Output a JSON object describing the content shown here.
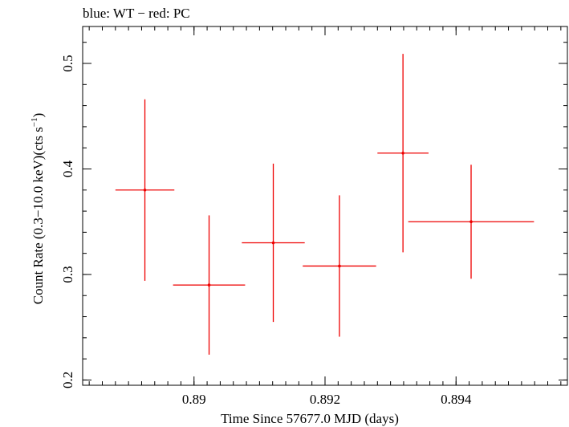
{
  "chart_data": {
    "type": "scatter",
    "title": "blue: WT − red: PC",
    "xlabel": "Time Since 57677.0 MJD (days)",
    "ylabel": "Count Rate (0.3−10.0 keV)(cts s",
    "ylabel_sup": "−1",
    "ylabel_close": ")",
    "xlim": [
      0.8883,
      0.8957
    ],
    "ylim": [
      0.195,
      0.535
    ],
    "x_ticks": [
      {
        "value": 0.89,
        "label": "0.89"
      },
      {
        "value": 0.892,
        "label": "0.892"
      },
      {
        "value": 0.894,
        "label": "0.894"
      }
    ],
    "x_minor_step": 0.0002,
    "y_ticks": [
      {
        "value": 0.2,
        "label": "0.2"
      },
      {
        "value": 0.3,
        "label": "0.3"
      },
      {
        "value": 0.4,
        "label": "0.4"
      },
      {
        "value": 0.5,
        "label": "0.5"
      }
    ],
    "y_minor_step": 0.02,
    "grid": false,
    "series": [
      {
        "color": "#ee0000",
        "points": [
          {
            "x": 0.88925,
            "y": 0.38,
            "xerr_lo": 0.00045,
            "xerr_hi": 0.00045,
            "yerr_lo": 0.086,
            "yerr_hi": 0.086
          },
          {
            "x": 0.89023,
            "y": 0.29,
            "xerr_lo": 0.00055,
            "xerr_hi": 0.00055,
            "yerr_lo": 0.066,
            "yerr_hi": 0.066
          },
          {
            "x": 0.89121,
            "y": 0.33,
            "xerr_lo": 0.00048,
            "xerr_hi": 0.00048,
            "yerr_lo": 0.075,
            "yerr_hi": 0.075
          },
          {
            "x": 0.89222,
            "y": 0.308,
            "xerr_lo": 0.00056,
            "xerr_hi": 0.00056,
            "yerr_lo": 0.067,
            "yerr_hi": 0.067
          },
          {
            "x": 0.89319,
            "y": 0.415,
            "xerr_lo": 0.00039,
            "xerr_hi": 0.00039,
            "yerr_lo": 0.094,
            "yerr_hi": 0.094
          },
          {
            "x": 0.89423,
            "y": 0.35,
            "xerr_lo": 0.00096,
            "xerr_hi": 0.00096,
            "yerr_lo": 0.054,
            "yerr_hi": 0.054
          }
        ]
      }
    ]
  }
}
